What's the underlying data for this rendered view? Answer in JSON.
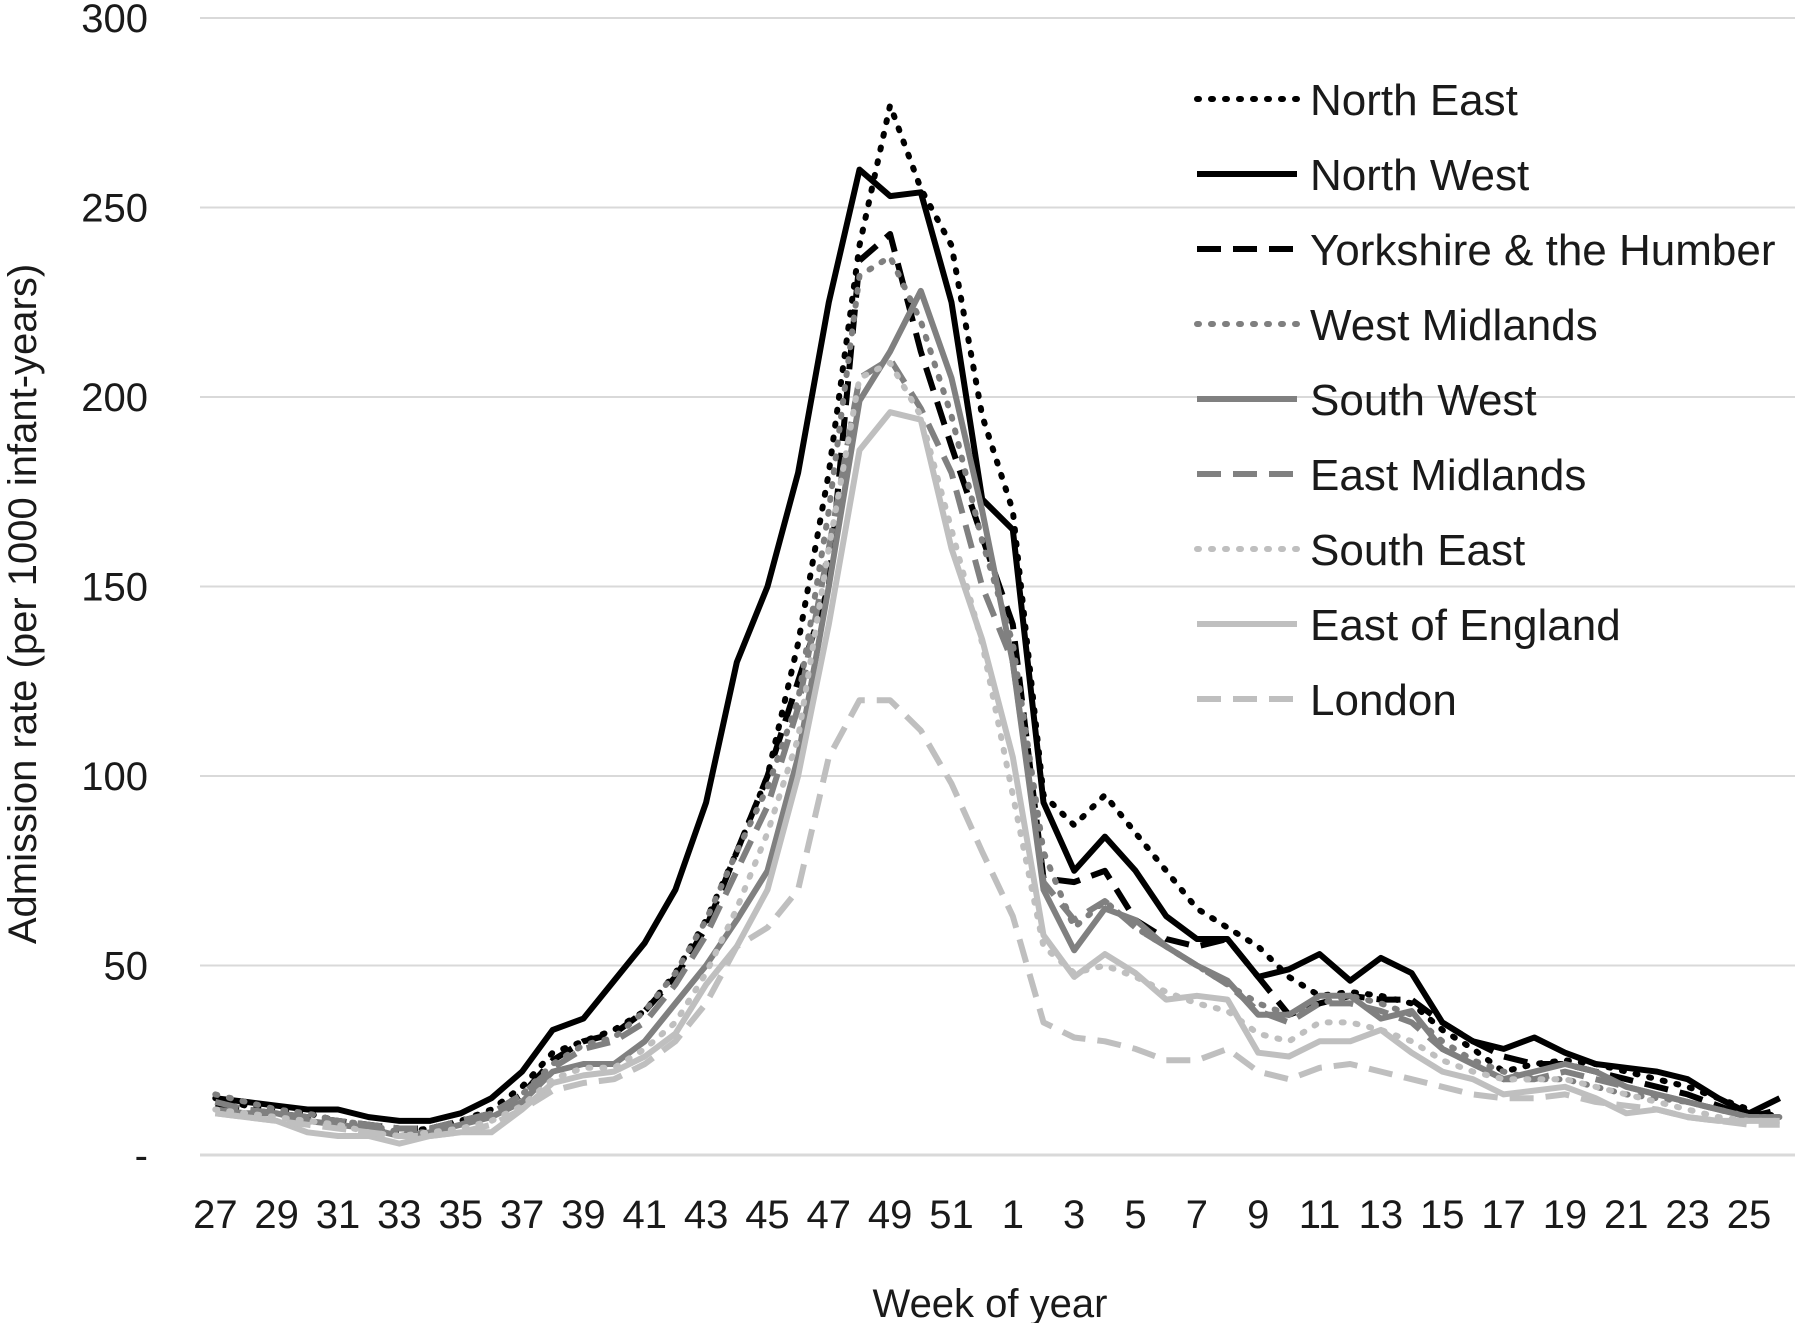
{
  "chart_data": {
    "type": "line",
    "title": "",
    "xlabel": "Week of year",
    "ylabel": "Admission rate (per 1000 infant-years)",
    "ylim": [
      0,
      300
    ],
    "y_ticks": [
      0,
      50,
      100,
      150,
      200,
      250,
      300
    ],
    "y_tick_labels": [
      "-",
      "50",
      "100",
      "150",
      "200",
      "250",
      "300"
    ],
    "grid": "horizontal",
    "legend_position": "top-right",
    "x": [
      27,
      28,
      29,
      30,
      31,
      32,
      33,
      34,
      35,
      36,
      37,
      38,
      39,
      40,
      41,
      42,
      43,
      44,
      45,
      46,
      47,
      48,
      49,
      50,
      51,
      52,
      1,
      2,
      3,
      4,
      5,
      6,
      7,
      8,
      9,
      10,
      11,
      12,
      13,
      14,
      15,
      16,
      17,
      18,
      19,
      20,
      21,
      22,
      23,
      24,
      25,
      26
    ],
    "x_tick_labels": [
      "27",
      "29",
      "31",
      "33",
      "35",
      "37",
      "39",
      "41",
      "43",
      "45",
      "47",
      "49",
      "51",
      "1",
      "3",
      "5",
      "7",
      "9",
      "11",
      "13",
      "15",
      "17",
      "19",
      "21",
      "23",
      "25"
    ],
    "series": [
      {
        "name": "North East",
        "color": "#000000",
        "dash": "dot",
        "width": 6,
        "values": [
          15,
          13,
          12,
          11,
          9,
          7,
          6,
          7,
          9,
          12,
          18,
          27,
          30,
          33,
          38,
          48,
          62,
          80,
          100,
          135,
          180,
          240,
          277,
          255,
          240,
          195,
          170,
          95,
          87,
          95,
          85,
          75,
          65,
          60,
          55,
          47,
          42,
          43,
          42,
          40,
          33,
          28,
          22,
          24,
          25,
          24,
          22,
          20,
          18,
          15,
          12,
          10
        ]
      },
      {
        "name": "North West",
        "color": "#000000",
        "dash": "solid",
        "width": 6,
        "values": [
          15,
          14,
          13,
          12,
          12,
          10,
          9,
          9,
          11,
          15,
          22,
          33,
          36,
          46,
          56,
          70,
          93,
          130,
          150,
          180,
          225,
          260,
          253,
          254,
          225,
          173,
          165,
          93,
          75,
          84,
          75,
          63,
          57,
          57,
          47,
          49,
          53,
          46,
          52,
          48,
          35,
          30,
          28,
          31,
          27,
          24,
          23,
          22,
          20,
          15,
          11,
          15
        ]
      },
      {
        "name": "Yorkshire & the Humber",
        "color": "#000000",
        "dash": "dash",
        "width": 6,
        "values": [
          13,
          12,
          11,
          10,
          9,
          8,
          7,
          7,
          9,
          11,
          16,
          25,
          30,
          32,
          38,
          47,
          60,
          80,
          100,
          125,
          150,
          236,
          243,
          212,
          187,
          163,
          140,
          73,
          72,
          75,
          62,
          57,
          55,
          57,
          47,
          37,
          40,
          42,
          41,
          41,
          35,
          30,
          26,
          24,
          24,
          22,
          20,
          18,
          16,
          13,
          10,
          12
        ]
      },
      {
        "name": "West Midlands",
        "color": "#7f7f7f",
        "dash": "dot",
        "width": 6,
        "values": [
          16,
          14,
          12,
          11,
          9,
          8,
          6,
          6,
          8,
          11,
          16,
          24,
          29,
          31,
          38,
          48,
          62,
          80,
          97,
          120,
          170,
          232,
          237,
          220,
          195,
          162,
          135,
          80,
          60,
          67,
          60,
          55,
          50,
          45,
          40,
          37,
          40,
          42,
          40,
          37,
          30,
          25,
          22,
          20,
          20,
          18,
          16,
          15,
          14,
          12,
          10,
          10
        ]
      },
      {
        "name": "South West",
        "color": "#808080",
        "dash": "solid",
        "width": 6,
        "values": [
          12,
          11,
          11,
          9,
          8,
          7,
          5,
          6,
          8,
          10,
          14,
          22,
          24,
          24,
          30,
          40,
          50,
          62,
          75,
          105,
          150,
          199,
          212,
          228,
          205,
          170,
          130,
          70,
          54,
          65,
          62,
          55,
          50,
          46,
          37,
          37,
          42,
          42,
          36,
          38,
          28,
          24,
          20,
          22,
          24,
          22,
          18,
          16,
          14,
          12,
          10,
          10
        ]
      },
      {
        "name": "East Midlands",
        "color": "#808080",
        "dash": "dash",
        "width": 6,
        "values": [
          14,
          12,
          11,
          10,
          9,
          8,
          7,
          7,
          9,
          11,
          16,
          23,
          28,
          30,
          35,
          45,
          58,
          75,
          92,
          118,
          160,
          205,
          210,
          197,
          180,
          150,
          130,
          72,
          62,
          67,
          60,
          55,
          50,
          45,
          38,
          35,
          40,
          40,
          38,
          35,
          28,
          24,
          20,
          20,
          22,
          20,
          18,
          16,
          14,
          12,
          10,
          10
        ]
      },
      {
        "name": "South East",
        "color": "#bfbfbf",
        "dash": "dot",
        "width": 6,
        "values": [
          12,
          11,
          10,
          9,
          8,
          6,
          5,
          6,
          7,
          9,
          13,
          20,
          23,
          23,
          28,
          35,
          48,
          65,
          85,
          110,
          160,
          205,
          209,
          195,
          165,
          135,
          95,
          55,
          48,
          50,
          47,
          43,
          40,
          38,
          32,
          30,
          35,
          35,
          33,
          30,
          25,
          22,
          20,
          20,
          20,
          18,
          16,
          14,
          12,
          10,
          9,
          9
        ]
      },
      {
        "name": "East of England",
        "color": "#bfbfbf",
        "dash": "solid",
        "width": 6,
        "values": [
          11,
          10,
          9,
          6,
          5,
          5,
          3,
          5,
          6,
          6,
          12,
          19,
          21,
          22,
          26,
          32,
          45,
          55,
          70,
          100,
          140,
          186,
          196,
          194,
          160,
          136,
          105,
          58,
          47,
          53,
          48,
          41,
          42,
          41,
          27,
          26,
          30,
          30,
          33,
          27,
          22,
          20,
          16,
          17,
          18,
          15,
          11,
          12,
          10,
          9,
          9,
          9
        ]
      },
      {
        "name": "London",
        "color": "#bfbfbf",
        "dash": "dash",
        "width": 6,
        "values": [
          11,
          10,
          9,
          8,
          7,
          6,
          5,
          5,
          6,
          8,
          12,
          17,
          19,
          20,
          24,
          30,
          40,
          55,
          60,
          70,
          105,
          120,
          120,
          112,
          98,
          80,
          63,
          35,
          31,
          30,
          28,
          25,
          25,
          28,
          22,
          20,
          23,
          24,
          22,
          20,
          18,
          16,
          15,
          15,
          16,
          14,
          13,
          12,
          10,
          9,
          8,
          8
        ]
      }
    ]
  }
}
